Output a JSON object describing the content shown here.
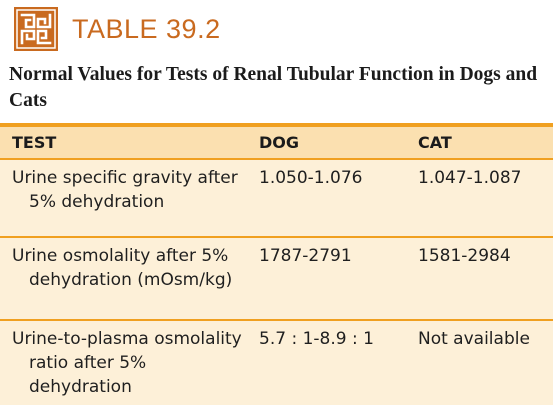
{
  "header": {
    "table_label": "TABLE 39.2",
    "logo_icon": "greek-key-icon",
    "accent_color": "#c96a1f"
  },
  "caption": "Normal Values for Tests of Renal Tubular Function in Dogs and Cats",
  "table": {
    "columns": [
      "TEST",
      "DOG",
      "CAT"
    ],
    "rows": [
      {
        "test": "Urine specific gravity after 5% dehydration",
        "dog": "1.050-1.076",
        "cat": "1.047-1.087"
      },
      {
        "test": "Urine osmolality after 5% dehydration (mOsm/kg)",
        "dog": "1787-2791",
        "cat": "1581-2984"
      },
      {
        "test": "Urine-to-plasma osmolality ratio after 5% dehydration",
        "dog": "5.7 : 1-8.9 : 1",
        "cat": "Not available"
      }
    ],
    "header_fill": "#fbe0b0",
    "row_fill": "#fdf0d8",
    "rule_color": "#f0a020"
  }
}
